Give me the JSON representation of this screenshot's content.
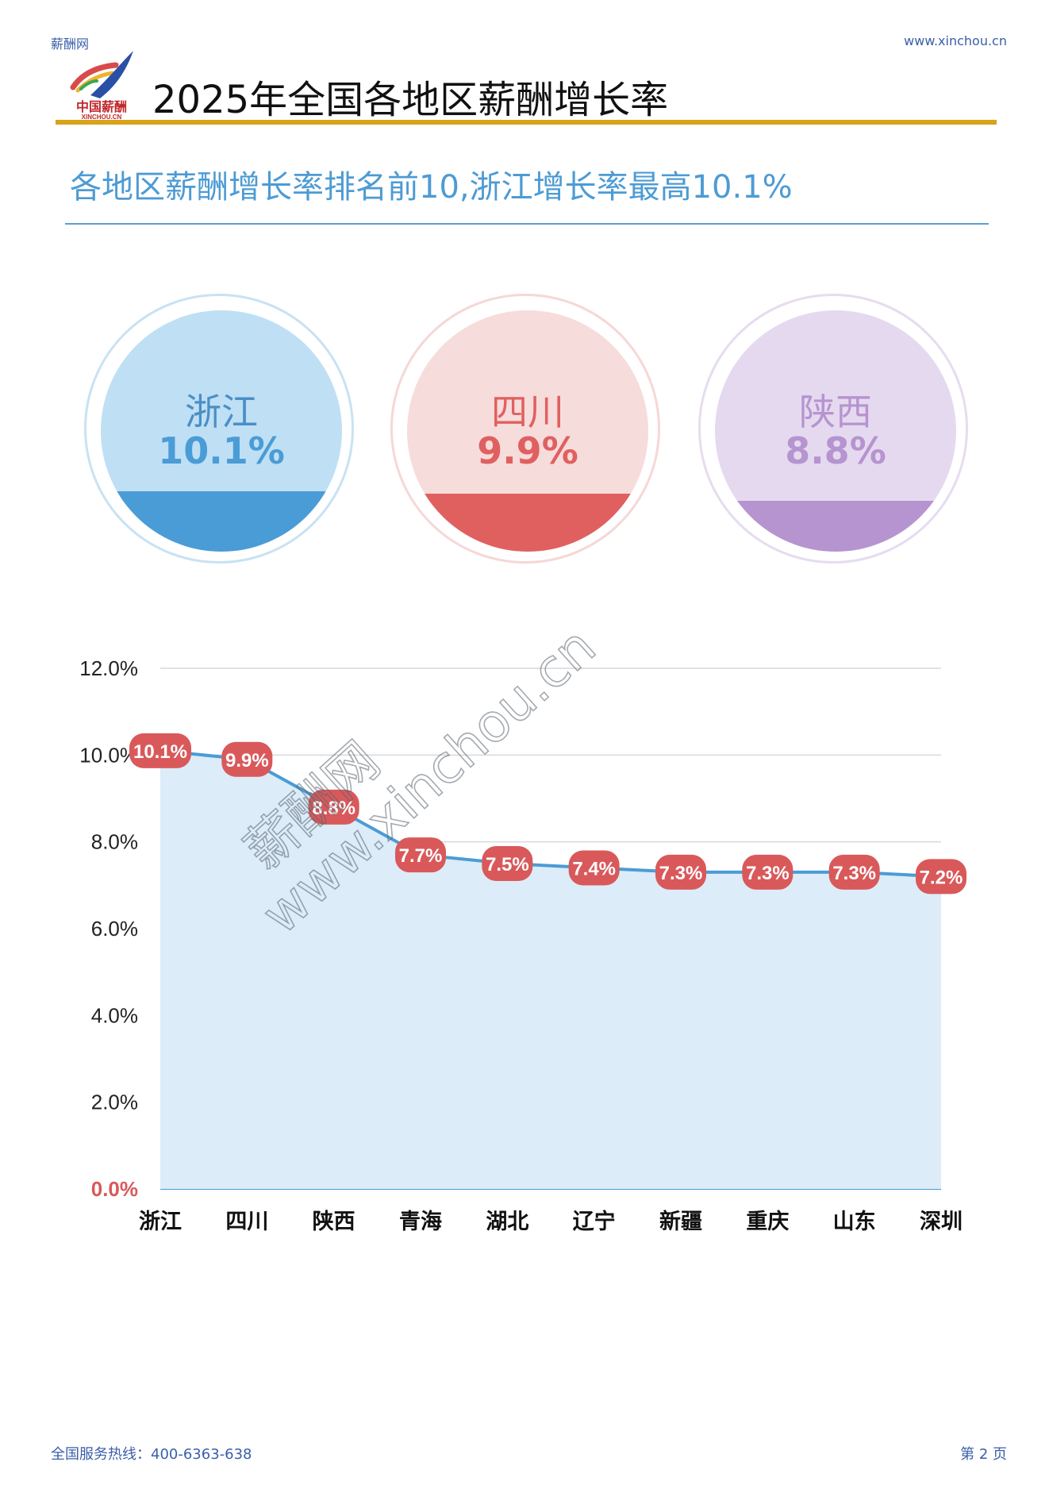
{
  "header": {
    "site_name": "薪酬网",
    "site_url": "www.xinchou.cn",
    "logo_text": "中国薪酬",
    "logo_subtext": "XINCHOU.CN",
    "title": "2025年全国各地区薪酬增长率"
  },
  "subtitle": "各地区薪酬增长率排名前10,浙江增长率最高10.1%",
  "top3": [
    {
      "name": "浙江",
      "value": "10.1%",
      "level": 0.25,
      "ring_color": "#c8e2f3",
      "bg_color": "#bfdff4",
      "fill_color": "#4a9cd6",
      "text_color": "#4a9cd6",
      "name_color": "#4a8fc6"
    },
    {
      "name": "四川",
      "value": "9.9%",
      "level": 0.24,
      "ring_color": "#f6d7d7",
      "bg_color": "#f7dcdc",
      "fill_color": "#e06060",
      "text_color": "#e06060",
      "name_color": "#e06060"
    },
    {
      "name": "陕西",
      "value": "8.8%",
      "level": 0.21,
      "ring_color": "#e6dcef",
      "bg_color": "#e5d9ef",
      "fill_color": "#b694cf",
      "text_color": "#b694cf",
      "name_color": "#b694cf"
    }
  ],
  "chart_data": {
    "type": "area",
    "categories": [
      "浙江",
      "四川",
      "陕西",
      "青海",
      "湖北",
      "辽宁",
      "新疆",
      "重庆",
      "山东",
      "深圳"
    ],
    "values": [
      10.1,
      9.9,
      8.8,
      7.7,
      7.5,
      7.4,
      7.3,
      7.3,
      7.3,
      7.2
    ],
    "data_labels": [
      "10.1%",
      "9.9%",
      "8.8%",
      "7.7%",
      "7.5%",
      "7.4%",
      "7.3%",
      "7.3%",
      "7.3%",
      "7.2%"
    ],
    "yticks": [
      "0.0%",
      "2.0%",
      "4.0%",
      "6.0%",
      "8.0%",
      "10.0%",
      "12.0%"
    ],
    "ylim": [
      0,
      12
    ],
    "grid": true,
    "line_color": "#4a9cd6",
    "area_color": "#dcecf8",
    "label_color": "#d9595b"
  },
  "watermark": {
    "line1": "薪酬网",
    "line2": "www.xinchou.cn"
  },
  "footer": {
    "hotline": "全国服务热线：400-6363-638",
    "page": "第 2 页"
  }
}
